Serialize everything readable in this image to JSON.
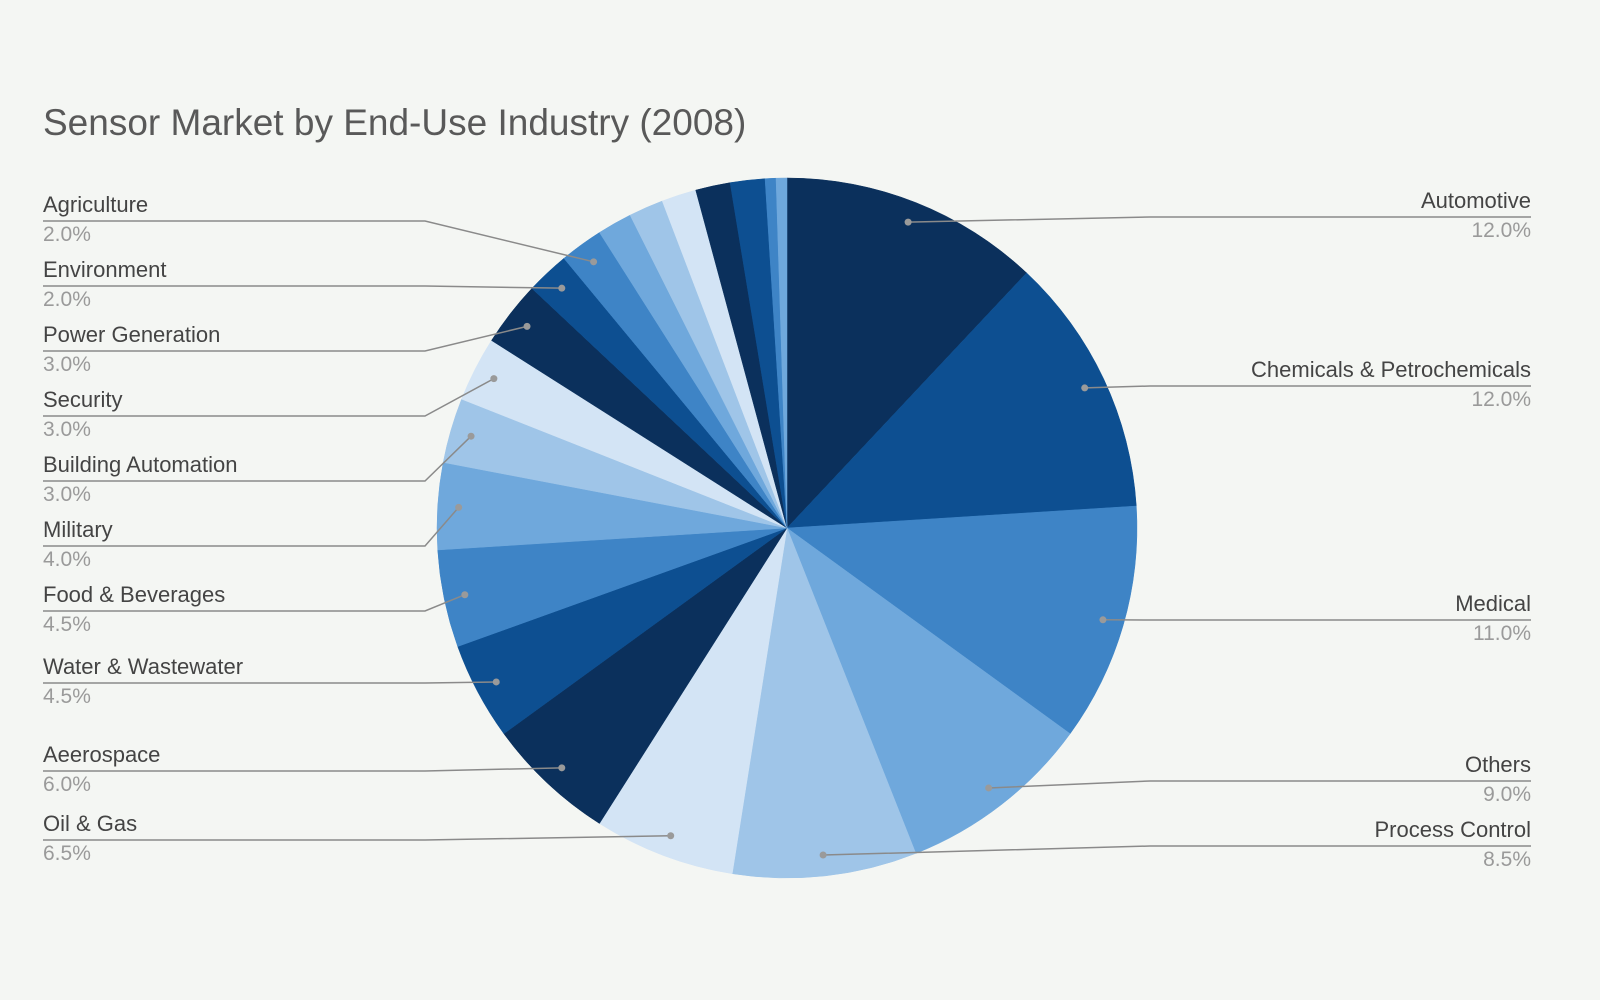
{
  "chart_data": {
    "type": "pie",
    "title": "Sensor Market by End-Use Industry (2008)",
    "start": "top, clockwise",
    "slices": [
      {
        "label": "Automotive",
        "value": 12.0,
        "pct_label": "12.0%",
        "color": "#0b305c",
        "side": "right"
      },
      {
        "label": "Chemicals & Petrochemicals",
        "value": 12.0,
        "pct_label": "12.0%",
        "color": "#0d4f91",
        "side": "right"
      },
      {
        "label": "Medical",
        "value": 11.0,
        "pct_label": "11.0%",
        "color": "#3e84c6",
        "side": "right"
      },
      {
        "label": "Others",
        "value": 9.0,
        "pct_label": "9.0%",
        "color": "#6fa8dc",
        "side": "right"
      },
      {
        "label": "Process Control",
        "value": 8.5,
        "pct_label": "8.5%",
        "color": "#9fc5e8",
        "side": "right"
      },
      {
        "label": "Oil & Gas",
        "value": 6.5,
        "pct_label": "6.5%",
        "color": "#d3e4f5",
        "side": "left"
      },
      {
        "label": "Aeerospace",
        "value": 6.0,
        "pct_label": "6.0%",
        "color": "#0b305c",
        "side": "left"
      },
      {
        "label": "Water & Wastewater",
        "value": 4.5,
        "pct_label": "4.5%",
        "color": "#0d4f91",
        "side": "left"
      },
      {
        "label": "Food & Beverages",
        "value": 4.5,
        "pct_label": "4.5%",
        "color": "#3e84c6",
        "side": "left"
      },
      {
        "label": "Military",
        "value": 4.0,
        "pct_label": "4.0%",
        "color": "#6fa8dc",
        "side": "left"
      },
      {
        "label": "Building Automation",
        "value": 3.0,
        "pct_label": "3.0%",
        "color": "#9fc5e8",
        "side": "left"
      },
      {
        "label": "Security",
        "value": 3.0,
        "pct_label": "3.0%",
        "color": "#d3e4f5",
        "side": "left"
      },
      {
        "label": "Power Generation",
        "value": 3.0,
        "pct_label": "3.0%",
        "color": "#0b305c",
        "side": "left"
      },
      {
        "label": "Environment",
        "value": 2.0,
        "pct_label": "2.0%",
        "color": "#0d4f91",
        "side": "left"
      },
      {
        "label": "Agriculture",
        "value": 2.0,
        "pct_label": "2.0%",
        "color": "#3e84c6",
        "side": "left"
      },
      {
        "label": null,
        "value": 1.6,
        "color": "#6fa8dc"
      },
      {
        "label": null,
        "value": 1.6,
        "color": "#9fc5e8"
      },
      {
        "label": null,
        "value": 1.6,
        "color": "#d3e4f5"
      },
      {
        "label": null,
        "value": 1.6,
        "color": "#0b305c"
      },
      {
        "label": null,
        "value": 1.6,
        "color": "#0d4f91"
      },
      {
        "label": null,
        "value": 0.5,
        "color": "#3e84c6"
      },
      {
        "label": null,
        "value": 0.5,
        "color": "#6fa8dc"
      }
    ],
    "legend": "labeled leader lines"
  }
}
